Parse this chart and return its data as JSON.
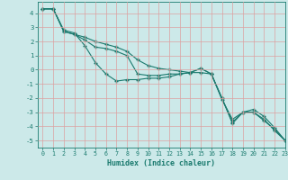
{
  "xlabel": "Humidex (Indice chaleur)",
  "xlim": [
    -0.5,
    23
  ],
  "ylim": [
    -5.5,
    4.8
  ],
  "xticks": [
    0,
    1,
    2,
    3,
    4,
    5,
    6,
    7,
    8,
    9,
    10,
    11,
    12,
    13,
    14,
    15,
    16,
    17,
    18,
    19,
    20,
    21,
    22,
    23
  ],
  "yticks": [
    -5,
    -4,
    -3,
    -2,
    -1,
    0,
    1,
    2,
    3,
    4
  ],
  "background_color": "#cce9e9",
  "grid_color": "#dda0a0",
  "line_color": "#1a7a6e",
  "line1_x": [
    0,
    1,
    2,
    3,
    4,
    5,
    6,
    7,
    8,
    9,
    10,
    11,
    12,
    13,
    14,
    15,
    16,
    17,
    18,
    19,
    20,
    21,
    22,
    23
  ],
  "line1_y": [
    4.3,
    4.3,
    2.8,
    2.6,
    1.7,
    0.5,
    -0.3,
    -0.8,
    -0.7,
    -0.7,
    -0.6,
    -0.6,
    -0.5,
    -0.3,
    -0.2,
    0.1,
    -0.3,
    -2.0,
    -3.7,
    -3.0,
    -3.0,
    -3.6,
    -4.2,
    -5.0
  ],
  "line2_x": [
    0,
    1,
    2,
    3,
    4,
    5,
    6,
    7,
    8,
    9,
    10,
    11,
    12,
    13,
    14,
    15,
    16,
    17,
    18,
    19,
    20,
    21,
    22,
    23
  ],
  "line2_y": [
    4.3,
    4.3,
    2.7,
    2.5,
    2.1,
    1.6,
    1.5,
    1.3,
    1.0,
    -0.3,
    -0.4,
    -0.4,
    -0.3,
    -0.3,
    -0.2,
    -0.2,
    -0.3,
    -2.1,
    -3.5,
    -3.0,
    -3.0,
    -3.5,
    -4.3,
    -5.0
  ],
  "line3_x": [
    0,
    1,
    2,
    3,
    4,
    5,
    6,
    7,
    8,
    9,
    10,
    11,
    12,
    13,
    14,
    15,
    16,
    17,
    18,
    19,
    20,
    21,
    22,
    23
  ],
  "line3_y": [
    4.3,
    4.3,
    2.7,
    2.5,
    2.3,
    2.0,
    1.8,
    1.6,
    1.3,
    0.7,
    0.3,
    0.1,
    0.0,
    -0.1,
    -0.2,
    0.1,
    -0.3,
    -2.0,
    -3.8,
    -3.0,
    -2.8,
    -3.3,
    -4.1,
    -5.0
  ]
}
